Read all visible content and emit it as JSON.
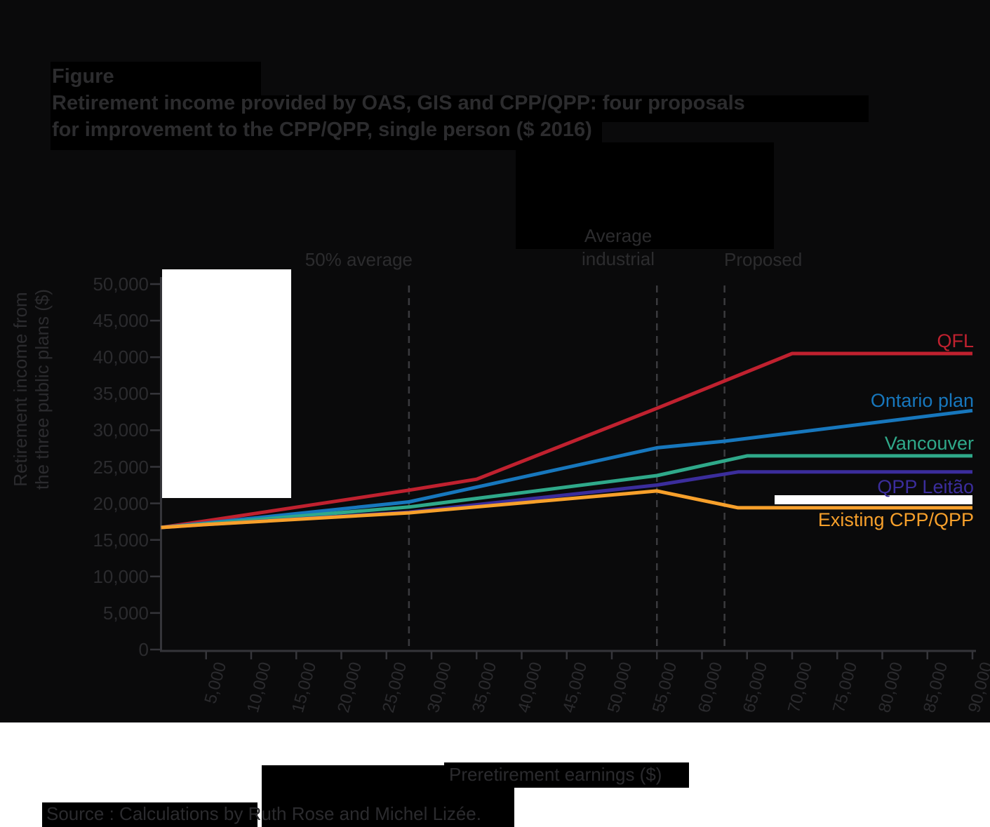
{
  "figure": {
    "label": "Figure",
    "title_line1": "Retirement income provided by OAS, GIS and CPP/QPP: four proposals",
    "title_line2": "for improvement to the CPP/QPP, single person ($ 2016)"
  },
  "source": "Source : Calculations by Ruth Rose and Michel Lizée.",
  "colors": {
    "background": "#0a0a0b",
    "panel": "#000000",
    "white_patch": "#ffffff",
    "text": "#2b2b2e",
    "axis": "#35353a"
  },
  "chart_data": {
    "type": "line",
    "xlabel": "Preretirement earnings ($)",
    "ylabel_lines": [
      "Retirement income from",
      "the three public plans ($)"
    ],
    "xlim": [
      0,
      90000
    ],
    "ylim": [
      0,
      50000
    ],
    "x_ticks": [
      5000,
      10000,
      15000,
      20000,
      25000,
      30000,
      35000,
      40000,
      45000,
      50000,
      55000,
      60000,
      65000,
      70000,
      75000,
      80000,
      85000,
      90000
    ],
    "y_ticks": [
      0,
      5000,
      10000,
      15000,
      20000,
      25000,
      30000,
      35000,
      40000,
      45000,
      50000
    ],
    "grid": false,
    "legend_position": "right-of-lines",
    "guides": [
      {
        "x": 27500,
        "label_lines": [
          "50% average"
        ]
      },
      {
        "x": 55000,
        "label_lines": [
          "Average",
          "industrial"
        ]
      },
      {
        "x": 62500,
        "label_lines": [
          "Proposed"
        ]
      }
    ],
    "series": [
      {
        "name": "QFL",
        "color": "#c0212f",
        "x": [
          0,
          5000,
          27500,
          35000,
          55000,
          70000,
          90000
        ],
        "y": [
          16700,
          17600,
          21800,
          23300,
          33000,
          40500,
          40500
        ]
      },
      {
        "name": "Ontario plan",
        "color": "#1777bd",
        "x": [
          0,
          5000,
          27500,
          55000,
          62500,
          90000
        ],
        "y": [
          16700,
          17300,
          20200,
          27600,
          28500,
          32700
        ]
      },
      {
        "name": "Vancouver",
        "color": "#2fa98a",
        "x": [
          0,
          5000,
          27500,
          55000,
          65000,
          90000
        ],
        "y": [
          16700,
          17200,
          19500,
          23800,
          26500,
          26500
        ]
      },
      {
        "name": "QPP Leitão",
        "color": "#3b2d9c",
        "x": [
          0,
          5000,
          27500,
          55000,
          64000,
          90000
        ],
        "y": [
          16700,
          17100,
          18800,
          22500,
          24300,
          24300
        ]
      },
      {
        "name": "Existing CPP/QPP",
        "color": "#f7a02b",
        "x": [
          0,
          5000,
          27500,
          55000,
          64000,
          90000
        ],
        "y": [
          16700,
          17100,
          18700,
          21700,
          19400,
          19400
        ]
      }
    ]
  }
}
